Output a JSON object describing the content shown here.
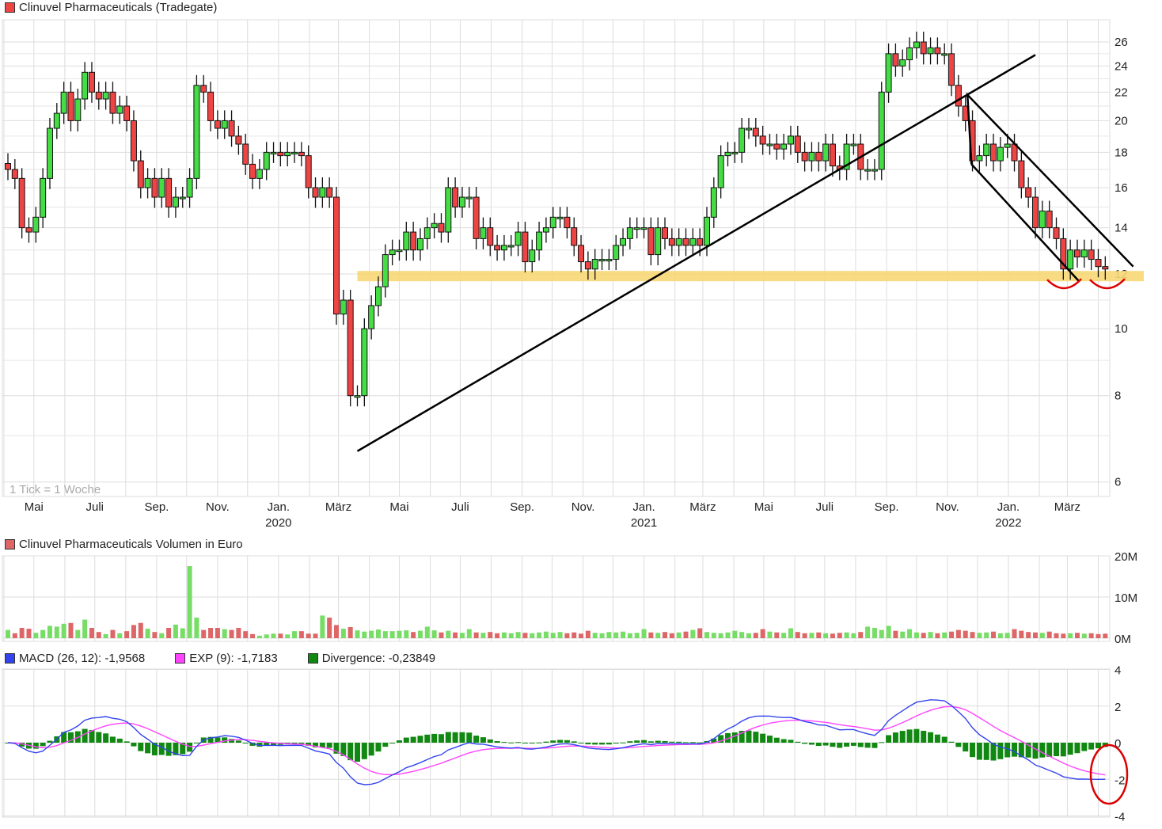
{
  "chart_data": [
    {
      "type": "candlestick",
      "title": "Clinuvel Pharmaceuticals (Tradegate)",
      "note": "1 Tick = 1 Woche",
      "y_scale": "log",
      "ylim": [
        6,
        27
      ],
      "y_ticks": [
        26,
        24,
        22,
        20,
        18,
        16,
        14,
        12,
        10,
        8,
        6
      ],
      "x_ticks": [
        {
          "label": "Mai",
          "date": "2019-05-01"
        },
        {
          "label": "Juli",
          "date": "2019-07-01"
        },
        {
          "label": "Sep.",
          "date": "2019-09-01"
        },
        {
          "label": "Nov.",
          "date": "2019-11-01"
        },
        {
          "label": "Jan.",
          "sub": "2020",
          "date": "2020-01-01"
        },
        {
          "label": "März",
          "date": "2020-03-01"
        },
        {
          "label": "Mai",
          "date": "2020-05-01"
        },
        {
          "label": "Juli",
          "date": "2020-07-01"
        },
        {
          "label": "Sep.",
          "date": "2020-09-01"
        },
        {
          "label": "Nov.",
          "date": "2020-11-01"
        },
        {
          "label": "Jan.",
          "sub": "2021",
          "date": "2021-01-01"
        },
        {
          "label": "März",
          "date": "2021-03-01"
        },
        {
          "label": "Mai",
          "date": "2021-05-01"
        },
        {
          "label": "Juli",
          "date": "2021-07-01"
        },
        {
          "label": "Sep.",
          "date": "2021-09-01"
        },
        {
          "label": "Nov.",
          "date": "2021-11-01"
        },
        {
          "label": "Jan.",
          "sub": "2022",
          "date": "2022-01-01"
        },
        {
          "label": "März",
          "date": "2022-03-01"
        }
      ],
      "first_week": "2019-04-05",
      "weekly_close": [
        17,
        16.5,
        14,
        13.8,
        14.5,
        16.5,
        19.5,
        20.5,
        22,
        20,
        21.5,
        23.5,
        22,
        21.5,
        22,
        20.5,
        21,
        20,
        17.5,
        16,
        16.5,
        15.5,
        16.5,
        15,
        15.5,
        15.5,
        16.5,
        22.5,
        22,
        20,
        19.5,
        20,
        19,
        18.5,
        17.3,
        16.5,
        17,
        18,
        18,
        17.8,
        18,
        18,
        17.8,
        16,
        15.5,
        16,
        15.5,
        10.5,
        11,
        8,
        8,
        10,
        10.8,
        11.5,
        12.8,
        13,
        13,
        13.8,
        13,
        13.5,
        14,
        14.2,
        13.8,
        16,
        15,
        15.5,
        15.5,
        13.5,
        14,
        13.2,
        13,
        13.2,
        13.2,
        13.8,
        12.5,
        13,
        13.8,
        14,
        14.5,
        14.5,
        14,
        13.2,
        12.5,
        12.2,
        12.6,
        12.6,
        12.6,
        13.2,
        13.5,
        14,
        14,
        14,
        12.8,
        14,
        13.5,
        13.2,
        13.5,
        13.2,
        13.5,
        13.2,
        14.5,
        16,
        17.8,
        18,
        18,
        19.5,
        19.5,
        19,
        18.5,
        18.5,
        18.2,
        18.5,
        19,
        18,
        17.5,
        18,
        17.5,
        18.5,
        17.2,
        17,
        18.5,
        18.5,
        17,
        17,
        17,
        22,
        25,
        24,
        24.5,
        25.5,
        26,
        25,
        25.5,
        25,
        25,
        22.5,
        21,
        20,
        17.5,
        17.8,
        18.5,
        17.5,
        18.3,
        18.5,
        17.5,
        16,
        15.5,
        14,
        14.8,
        14,
        13.5,
        12.2,
        13,
        12.7,
        13,
        12.6,
        12.3,
        12.2
      ],
      "colors": {
        "up": "#44dd44",
        "down": "#ee4444"
      },
      "annotations": {
        "support_band_price": 11.9,
        "support_band_color": "#f7d774",
        "trend_line": [
          {
            "date": "2020-03-20",
            "price": 6.65
          },
          {
            "date": "2022-01-28",
            "price": 24.9
          }
        ],
        "channel": [
          [
            {
              "date": "2021-11-25",
              "price": 17.3
            },
            {
              "date": "2021-11-21",
              "price": 21.8
            },
            {
              "date": "2022-05-06",
              "price": 12.3
            }
          ],
          [
            {
              "date": "2021-11-25",
              "price": 17.3
            },
            {
              "date": "2022-03-13",
              "price": 11.7
            }
          ]
        ]
      }
    },
    {
      "type": "bar",
      "title": "Clinuvel Pharmaceuticals Volumen in Euro",
      "unit": "M",
      "ylim": [
        0,
        20
      ],
      "y_ticks": [
        "20M",
        "10M",
        "0M"
      ],
      "values": [
        2,
        1.2,
        2.5,
        2.3,
        1.3,
        2,
        3,
        2.8,
        3.5,
        3.7,
        2,
        4.5,
        2.5,
        1.5,
        1,
        2,
        1.2,
        1.7,
        3.2,
        3.7,
        2.3,
        1.5,
        1.2,
        2.5,
        3.3,
        2.4,
        17.5,
        5,
        2,
        2.5,
        2.5,
        2.2,
        2,
        2.5,
        1.7,
        1,
        0.6,
        0.9,
        1.1,
        1.1,
        0.9,
        1.7,
        1.7,
        1.1,
        1.1,
        5.5,
        5,
        3.2,
        2.3,
        2.7,
        1.9,
        1.6,
        1.8,
        2.1,
        1.7,
        1.7,
        1.8,
        1.9,
        1.5,
        1.8,
        2.8,
        1.9,
        1.4,
        1.8,
        1.4,
        1.3,
        2.2,
        1.4,
        1.3,
        1.5,
        1.2,
        1.4,
        1.2,
        1.5,
        1.3,
        1.2,
        1.4,
        1.6,
        1.3,
        1.5,
        1.2,
        1.4,
        1.1,
        1.8,
        1.3,
        1.2,
        1.5,
        1.4,
        1.6,
        1.2,
        1.3,
        2.2,
        1.4,
        1.3,
        1.5,
        1.2,
        1.4,
        1.6,
        2,
        2.4,
        1.5,
        1.3,
        1.2,
        1.4,
        1.8,
        1.5,
        1.2,
        1.3,
        2.2,
        1.6,
        1.4,
        1.3,
        2.4,
        1.5,
        1.2,
        1.3,
        1.4,
        1.2,
        1.1,
        1.3,
        1.4,
        1.2,
        1.5,
        2.8,
        2.5,
        2,
        3,
        1.8,
        1.6,
        2.2,
        1.4,
        1.3,
        1.5,
        1.2,
        1.4,
        1.6,
        2,
        1.8,
        1.5,
        1.3,
        1.4,
        1.6,
        1.2,
        1.3,
        2.2,
        1.8,
        1.5,
        1.4,
        1.3,
        1.6,
        1.2,
        1.1,
        1.2,
        1.3,
        1.1,
        1.2,
        1.0,
        1.1
      ]
    },
    {
      "type": "line",
      "legend": [
        {
          "name": "MACD (26, 12): -1,9568",
          "color": "#3344ee"
        },
        {
          "name": "EXP (9): -1,7183",
          "color": "#ff44ff"
        },
        {
          "name": "Divergence: -0,23849",
          "color": "#118811"
        }
      ],
      "ylim": [
        -4,
        4
      ],
      "y_ticks": [
        4,
        2,
        0,
        -2,
        -4
      ],
      "derived_from": "weekly_close",
      "annotation_color": "#dd0000"
    }
  ]
}
